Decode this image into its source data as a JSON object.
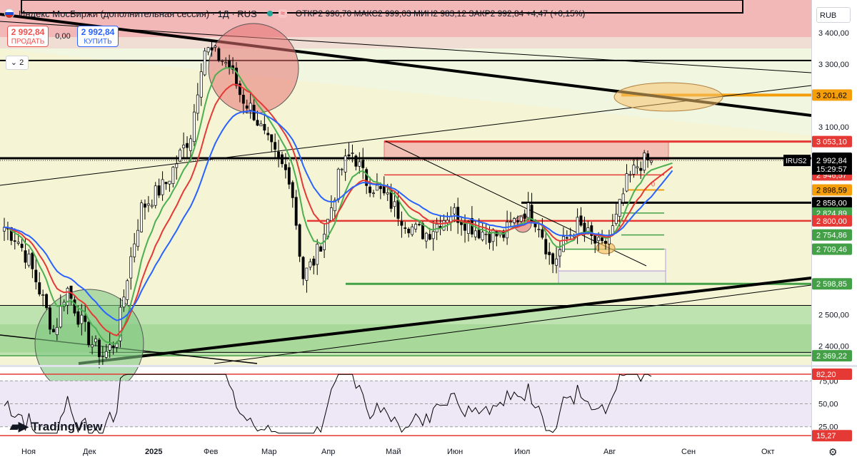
{
  "header": {
    "title": "Индекс МосБиржи (дополнительная сессия) · 1Д · RUS",
    "ohlc": "ОТКР2 996,70 МАКС2 999,03 МИН2 983,12 ЗАКР2 992,84 +4,47 (+0,15%)"
  },
  "trade": {
    "sell_price": "2 992,84",
    "sell_label": "ПРОДАТЬ",
    "spread": "0,00",
    "buy_price": "2 992,84",
    "buy_label": "КУПИТЬ"
  },
  "indicator_count": "2",
  "currency": "RUB",
  "logo": "TradingView",
  "colors": {
    "up": "#26a69a",
    "down": "#000000",
    "ema_fast": "#4caf50",
    "ema_mid": "#e53935",
    "ema_slow": "#2962ff",
    "red": "#e53935",
    "green": "#43a047",
    "orange": "#f59e0b",
    "black": "#000000"
  },
  "chart_data": {
    "type": "candlestick",
    "price_axis": {
      "ticks": [
        3400,
        3300,
        3100,
        2500,
        2400
      ],
      "tick_labels": [
        "3 400,00",
        "3 300,00",
        "3 100,00",
        "2 500,00",
        "2 400,00"
      ],
      "range": [
        2340,
        3505
      ]
    },
    "time_axis": {
      "labels": [
        "Ноя",
        "Дек",
        "2025",
        "Фев",
        "Мар",
        "Апр",
        "Май",
        "Июн",
        "Июл",
        "Авг",
        "Сен",
        "Окт"
      ]
    },
    "price_labels": [
      {
        "value": 3201.62,
        "text": "3 201,62",
        "color": "#f59e0b"
      },
      {
        "value": 3053.1,
        "text": "3 053,10",
        "color": "#e53935"
      },
      {
        "value": 3000.0,
        "text": "3 000,00",
        "color": "#000000"
      },
      {
        "value": 2946.57,
        "text": "2 946,57",
        "color": "#e53935"
      },
      {
        "value": 2898.59,
        "text": "2 898,59",
        "color": "#f59e0b"
      },
      {
        "value": 2858.0,
        "text": "2 858,00",
        "color": "#000000"
      },
      {
        "value": 2824.89,
        "text": "2 824,89",
        "color": "#43a047"
      },
      {
        "value": 2800.0,
        "text": "2 800,00",
        "color": "#e53935"
      },
      {
        "value": 2754.86,
        "text": "2 754,86",
        "color": "#43a047"
      },
      {
        "value": 2709.46,
        "text": "2 709,46",
        "color": "#43a047"
      },
      {
        "value": 2598.85,
        "text": "2 598,85",
        "color": "#43a047"
      },
      {
        "value": 2369.22,
        "text": "2 369,22",
        "color": "#43a047"
      }
    ],
    "last_price": {
      "symbol": "IRUS2",
      "value": 2992.84,
      "text": "2 992,84",
      "countdown": "15:29:57"
    },
    "series_anchor": [
      2780,
      2745,
      2670,
      2560,
      2440,
      2590,
      2490,
      2410,
      2370,
      2420,
      2650,
      2840,
      2880,
      2920,
      3000,
      3080,
      3350,
      3330,
      3300,
      3200,
      3150,
      3060,
      2990,
      2940,
      2620,
      2680,
      2800,
      2960,
      3020,
      2930,
      2900,
      2860,
      2810,
      2770,
      2760,
      2800,
      2830,
      2800,
      2770,
      2760,
      2750,
      2800,
      2840,
      2790,
      2660,
      2730,
      2790,
      2750,
      2710,
      2780,
      2920,
      2985,
      2993
    ],
    "oscillator": {
      "ticks": [
        75,
        50,
        25
      ],
      "tick_labels": [
        "75,00",
        "50,00",
        "25,00"
      ],
      "levels": [
        {
          "value": 82.2,
          "text": "82,20"
        },
        {
          "value": 15.27,
          "text": "15,27"
        }
      ],
      "range": [
        10,
        90
      ]
    }
  }
}
